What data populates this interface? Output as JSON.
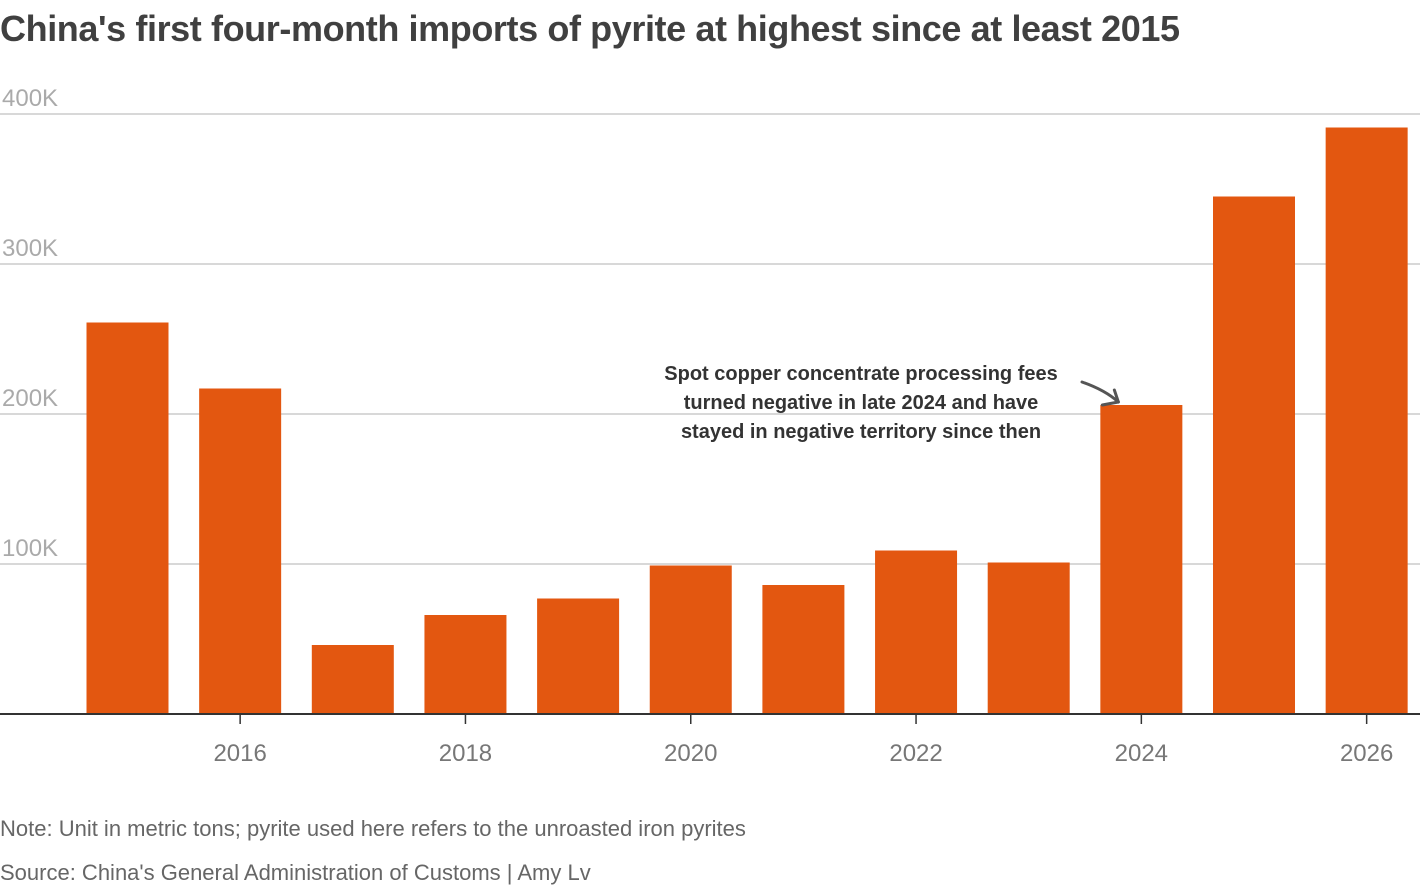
{
  "chart_data": {
    "type": "bar",
    "title": "China's first four-month imports of pyrite at highest since at least 2015",
    "x": [
      2015,
      2016,
      2017,
      2018,
      2019,
      2020,
      2021,
      2022,
      2023,
      2024,
      2025,
      2026
    ],
    "values": [
      261000,
      217000,
      46000,
      66000,
      77000,
      99000,
      86000,
      109000,
      101000,
      206000,
      345000,
      391000
    ],
    "xticks": [
      2016,
      2018,
      2020,
      2022,
      2024,
      2026
    ],
    "yticks": [
      {
        "value": 100000,
        "label": "100K"
      },
      {
        "value": 200000,
        "label": "200K"
      },
      {
        "value": 300000,
        "label": "300K"
      },
      {
        "value": 400000,
        "label": "400K"
      }
    ],
    "ylim": [
      0,
      400000
    ],
    "grid": true,
    "bar_color": "#e35710",
    "annotation": {
      "lines": [
        "Spot copper concentrate processing fees",
        "turned negative in late 2024 and have",
        "stayed in negative territory since then"
      ],
      "target_x": 2024
    },
    "note": "Note: Unit in metric tons; pyrite used here refers to the unroasted iron pyrites",
    "source": "Source: China's General Administration of Customs | Amy Lv"
  }
}
